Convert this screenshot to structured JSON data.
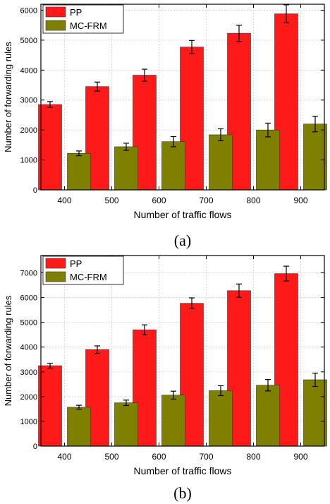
{
  "chart_data": [
    {
      "type": "bar",
      "caption": "(a)",
      "xlabel": "Number of traffic flows",
      "ylabel": "Number of forwarding rules",
      "categories": [
        "400",
        "500",
        "600",
        "700",
        "800",
        "900"
      ],
      "ylim": [
        0,
        6200
      ],
      "yticks": [
        0,
        1000,
        2000,
        3000,
        4000,
        5000,
        6000
      ],
      "grid": true,
      "legend": "top-left",
      "series": [
        {
          "name": "PP",
          "color": "#ff1a1a",
          "values": [
            2850,
            3450,
            3830,
            4770,
            5230,
            5880
          ],
          "errors": [
            100,
            150,
            200,
            220,
            270,
            300
          ]
        },
        {
          "name": "MC-FRM",
          "color": "#808000",
          "values": [
            1220,
            1440,
            1610,
            1840,
            2000,
            2200
          ],
          "errors": [
            80,
            120,
            170,
            200,
            230,
            260
          ]
        }
      ]
    },
    {
      "type": "bar",
      "caption": "(b)",
      "xlabel": "Number of traffic flows",
      "ylabel": "Number of forwarding rules",
      "categories": [
        "400",
        "500",
        "600",
        "700",
        "800",
        "900"
      ],
      "ylim": [
        0,
        7700
      ],
      "yticks": [
        0,
        1000,
        2000,
        3000,
        4000,
        5000,
        6000,
        7000
      ],
      "grid": true,
      "legend": "top-left",
      "series": [
        {
          "name": "PP",
          "color": "#ff1a1a",
          "values": [
            3250,
            3900,
            4700,
            5770,
            6280,
            6970
          ],
          "errors": [
            100,
            150,
            200,
            220,
            270,
            300
          ]
        },
        {
          "name": "MC-FRM",
          "color": "#808000",
          "values": [
            1570,
            1750,
            2060,
            2240,
            2460,
            2680
          ],
          "errors": [
            80,
            110,
            160,
            200,
            230,
            270
          ]
        }
      ]
    }
  ]
}
